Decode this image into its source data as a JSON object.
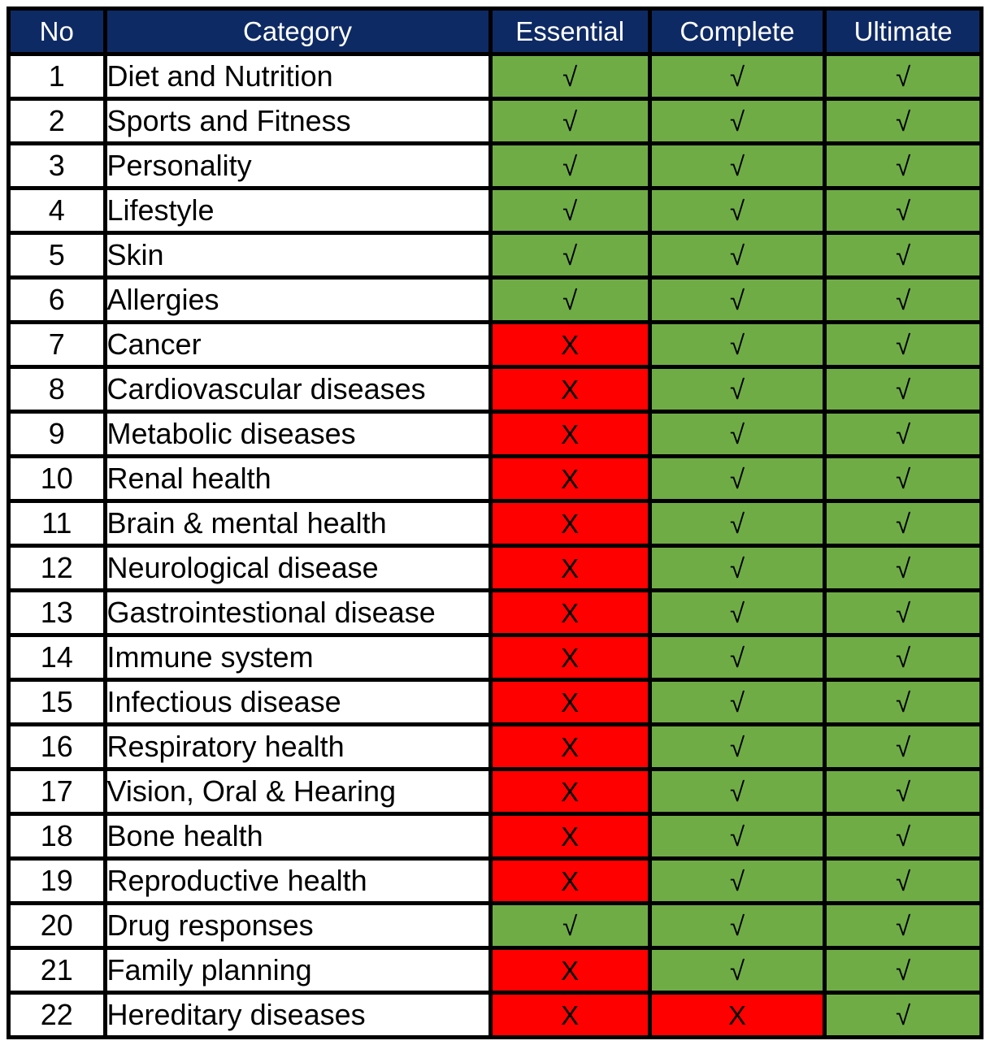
{
  "table": {
    "columns": [
      {
        "label": "No"
      },
      {
        "label": "Category"
      },
      {
        "label": "Essential"
      },
      {
        "label": "Complete"
      },
      {
        "label": "Ultimate"
      }
    ],
    "symbols": {
      "check": "√",
      "cross": "X"
    },
    "colors": {
      "header_bg": "#0e2a64",
      "header_text": "#ffffff",
      "check_bg": "#6fac46",
      "cross_bg": "#ff0000",
      "row_bg": "#ffffff",
      "border": "#000000",
      "text": "#000000"
    },
    "rows": [
      {
        "no": "1",
        "category": "Diet and Nutrition",
        "essential": "check",
        "complete": "check",
        "ultimate": "check"
      },
      {
        "no": "2",
        "category": "Sports and Fitness",
        "essential": "check",
        "complete": "check",
        "ultimate": "check"
      },
      {
        "no": "3",
        "category": "Personality",
        "essential": "check",
        "complete": "check",
        "ultimate": "check"
      },
      {
        "no": "4",
        "category": "Lifestyle",
        "essential": "check",
        "complete": "check",
        "ultimate": "check"
      },
      {
        "no": "5",
        "category": "Skin",
        "essential": "check",
        "complete": "check",
        "ultimate": "check"
      },
      {
        "no": "6",
        "category": "Allergies",
        "essential": "check",
        "complete": "check",
        "ultimate": "check"
      },
      {
        "no": "7",
        "category": "Cancer",
        "essential": "cross",
        "complete": "check",
        "ultimate": "check"
      },
      {
        "no": "8",
        "category": "Cardiovascular diseases",
        "essential": "cross",
        "complete": "check",
        "ultimate": "check"
      },
      {
        "no": "9",
        "category": "Metabolic diseases",
        "essential": "cross",
        "complete": "check",
        "ultimate": "check"
      },
      {
        "no": "10",
        "category": "Renal health",
        "essential": "cross",
        "complete": "check",
        "ultimate": "check"
      },
      {
        "no": "11",
        "category": "Brain & mental health",
        "essential": "cross",
        "complete": "check",
        "ultimate": "check"
      },
      {
        "no": "12",
        "category": "Neurological disease",
        "essential": "cross",
        "complete": "check",
        "ultimate": "check"
      },
      {
        "no": "13",
        "category": "Gastrointestional disease",
        "essential": "cross",
        "complete": "check",
        "ultimate": "check"
      },
      {
        "no": "14",
        "category": "Immune system",
        "essential": "cross",
        "complete": "check",
        "ultimate": "check"
      },
      {
        "no": "15",
        "category": "Infectious disease",
        "essential": "cross",
        "complete": "check",
        "ultimate": "check"
      },
      {
        "no": "16",
        "category": "Respiratory health",
        "essential": "cross",
        "complete": "check",
        "ultimate": "check"
      },
      {
        "no": "17",
        "category": "Vision, Oral & Hearing",
        "essential": "cross",
        "complete": "check",
        "ultimate": "check"
      },
      {
        "no": "18",
        "category": "Bone health",
        "essential": "cross",
        "complete": "check",
        "ultimate": "check"
      },
      {
        "no": "19",
        "category": "Reproductive health",
        "essential": "cross",
        "complete": "check",
        "ultimate": "check"
      },
      {
        "no": "20",
        "category": "Drug responses",
        "essential": "check",
        "complete": "check",
        "ultimate": "check"
      },
      {
        "no": "21",
        "category": "Family planning",
        "essential": "cross",
        "complete": "check",
        "ultimate": "check"
      },
      {
        "no": "22",
        "category": "Hereditary diseases",
        "essential": "cross",
        "complete": "cross",
        "ultimate": "check"
      }
    ]
  }
}
